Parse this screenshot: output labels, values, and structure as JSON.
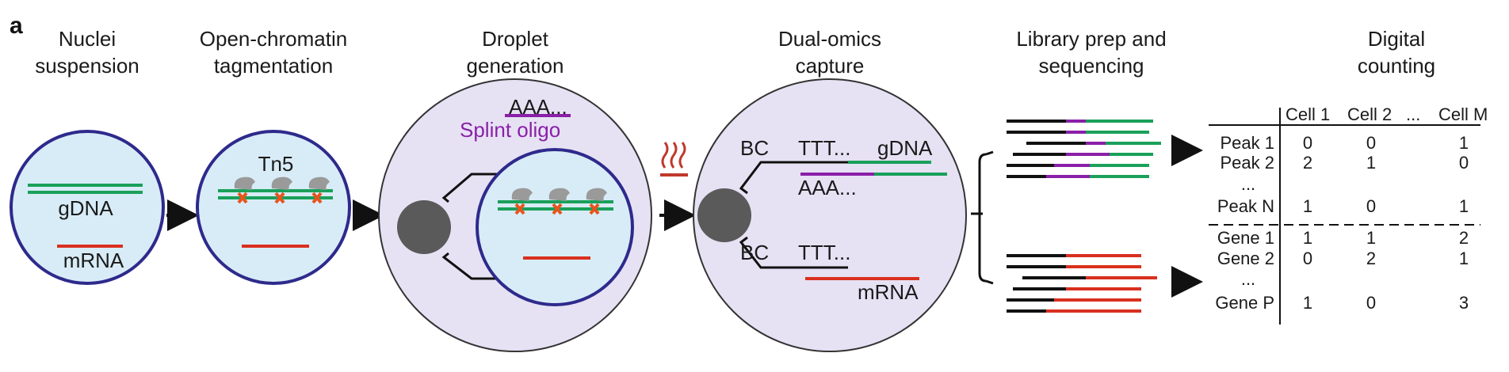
{
  "panel_label": "a",
  "steps": [
    {
      "line1": "Nuclei",
      "line2": "suspension"
    },
    {
      "line1": "Open-chromatin",
      "line2": "tagmentation"
    },
    {
      "line1": "Droplet",
      "line2": "generation"
    },
    {
      "line1": "Dual-omics",
      "line2": "capture"
    },
    {
      "line1": "Library prep and",
      "line2": "sequencing"
    },
    {
      "line1": "Digital",
      "line2": "counting"
    }
  ],
  "labels": {
    "gdna": "gDNA",
    "mrna": "mRNA",
    "tn5": "Tn5",
    "aaa": "AAA...",
    "splint": "Splint oligo",
    "bc": "BC",
    "ttt": "TTT..."
  },
  "table": {
    "header": [
      "Cell 1",
      "Cell 2",
      "...",
      "Cell M"
    ],
    "peak_rows": [
      {
        "label": "Peak 1",
        "values": [
          "0",
          "0",
          "1"
        ]
      },
      {
        "label": "Peak 2",
        "values": [
          "2",
          "1",
          "0"
        ]
      },
      {
        "label": "...",
        "values": [
          "",
          "",
          ""
        ]
      },
      {
        "label": "Peak N",
        "values": [
          "1",
          "0",
          "1"
        ]
      }
    ],
    "gene_rows": [
      {
        "label": "Gene 1",
        "values": [
          "1",
          "1",
          "2"
        ]
      },
      {
        "label": "Gene 2",
        "values": [
          "0",
          "2",
          "1"
        ]
      },
      {
        "label": "...",
        "values": [
          "",
          "",
          ""
        ]
      },
      {
        "label": "Gene P",
        "values": [
          "1",
          "0",
          "3"
        ]
      }
    ]
  },
  "colors": {
    "green": "#1aa05a",
    "red": "#d9301f",
    "purple": "#8a1fa8",
    "droplet": "#e6e2f4",
    "nucleus": "#d8ecf7",
    "outline": "#2e2a8c",
    "bead": "#5a5a5a"
  }
}
